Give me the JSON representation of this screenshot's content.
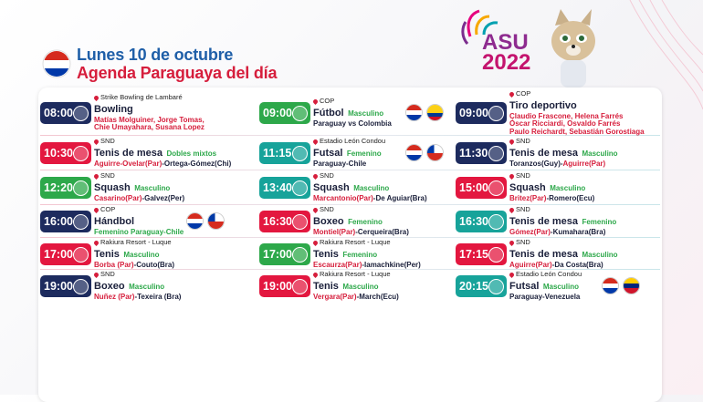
{
  "header": {
    "date": "Lunes 10 de octubre",
    "subtitle": "Agenda Paraguaya del día"
  },
  "logo": {
    "text": "ASU",
    "year": "2022"
  },
  "events": [
    {
      "time": "08:00",
      "color": "#1d2b5e",
      "venue": "Strike Bowling de Lambaré",
      "sport": "Bowling",
      "lines": [
        [
          {
            "text": "Matías Molguiner, Jorge Tomas,",
            "color": "#d61e3c"
          }
        ],
        [
          {
            "text": "Chie Umayahara, Susana Lopez",
            "color": "#d61e3c"
          }
        ]
      ]
    },
    {
      "time": "09:00",
      "color": "#2da84a",
      "venue": "COP",
      "sport": "Fútbol",
      "category": "Masculino",
      "lines": [
        [
          {
            "text": "Paraguay vs Colombia",
            "color": "#1a1f3a"
          }
        ]
      ]
    },
    {
      "time": "09:00",
      "color": "#1d2b5e",
      "venue": "COP",
      "sport": "Tiro deportivo",
      "lines": [
        [
          {
            "text": "Claudio Frascone, Helena Farrés",
            "color": "#d61e3c"
          }
        ],
        [
          {
            "text": "Óscar Ricciardi, Osvaldo Farrés",
            "color": "#d61e3c"
          }
        ],
        [
          {
            "text": "Paulo Reichardt, Sebastián Gorostiaga",
            "color": "#d61e3c"
          }
        ]
      ]
    },
    {
      "time": "10:30",
      "color": "#e3173f",
      "venue": "SND",
      "sport": "Tenis de mesa",
      "category": "Dobles mixtos",
      "lines": [
        [
          {
            "text": "Aguirre-Ovelar(Par)",
            "color": "#d61e3c"
          },
          {
            "text": "-Ortega-Gómez(Chi)",
            "color": "#1a1f3a"
          }
        ]
      ]
    },
    {
      "time": "11:15",
      "color": "#17a39a",
      "venue": "Estadio León Condou",
      "sport": "Futsal",
      "category": "Femenino",
      "lines": [
        [
          {
            "text": "Paraguay-Chile",
            "color": "#1a1f3a"
          }
        ]
      ]
    },
    {
      "time": "11:30",
      "color": "#1d2b5e",
      "venue": "SND",
      "sport": "Tenis de mesa",
      "category": "Masculino",
      "lines": [
        [
          {
            "text": "Toranzos(Guy)-",
            "color": "#1a1f3a"
          },
          {
            "text": "Aguirre(Par)",
            "color": "#d61e3c"
          }
        ]
      ]
    },
    {
      "time": "12:20",
      "color": "#2da84a",
      "venue": "SND",
      "sport": "Squash",
      "category": "Masculino",
      "lines": [
        [
          {
            "text": "Casarino(Par)",
            "color": "#d61e3c"
          },
          {
            "text": "-Galvez(Per)",
            "color": "#1a1f3a"
          }
        ]
      ]
    },
    {
      "time": "13:40",
      "color": "#17a39a",
      "venue": "SND",
      "sport": "Squash",
      "category": "Masculino",
      "lines": [
        [
          {
            "text": "Marcantonio(Par)",
            "color": "#d61e3c"
          },
          {
            "text": "-De Aguiar(Bra)",
            "color": "#1a1f3a"
          }
        ]
      ]
    },
    {
      "time": "15:00",
      "color": "#e3173f",
      "venue": "SND",
      "sport": "Squash",
      "category": "Masculino",
      "lines": [
        [
          {
            "text": "Britez(Par)",
            "color": "#d61e3c"
          },
          {
            "text": "-Romero(Ecu)",
            "color": "#1a1f3a"
          }
        ]
      ]
    },
    {
      "time": "16:00",
      "color": "#1d2b5e",
      "venue": "COP",
      "sport": "Hándbol",
      "lines": [
        [
          {
            "text": "Femenino Paraguay-Chile",
            "color": "#2da84a"
          }
        ]
      ]
    },
    {
      "time": "16:30",
      "color": "#e3173f",
      "venue": "SND",
      "sport": "Boxeo",
      "category": "Femenino",
      "lines": [
        [
          {
            "text": "Montiel(Par)",
            "color": "#d61e3c"
          },
          {
            "text": "-Cerqueira(Bra)",
            "color": "#1a1f3a"
          }
        ]
      ]
    },
    {
      "time": "16:30",
      "color": "#17a39a",
      "venue": "SND",
      "sport": "Tenis de mesa",
      "category": "Femenino",
      "lines": [
        [
          {
            "text": "Gómez(Par)",
            "color": "#d61e3c"
          },
          {
            "text": "-Kumahara(Bra)",
            "color": "#1a1f3a"
          }
        ]
      ]
    },
    {
      "time": "17:00",
      "color": "#e3173f",
      "venue": "Rakiura Resort - Luque",
      "sport": "Tenis",
      "category": "Masculino",
      "lines": [
        [
          {
            "text": "Borba (Par)",
            "color": "#d61e3c"
          },
          {
            "text": "-Couto(Bra)",
            "color": "#1a1f3a"
          }
        ]
      ]
    },
    {
      "time": "17:00",
      "color": "#2da84a",
      "venue": "Rakiura Resort - Luque",
      "sport": "Tenis",
      "category": "Femenino",
      "lines": [
        [
          {
            "text": "Escaurza(Par)",
            "color": "#d61e3c"
          },
          {
            "text": "-Iamachkine(Per)",
            "color": "#1a1f3a"
          }
        ]
      ]
    },
    {
      "time": "17:15",
      "color": "#e3173f",
      "venue": "SND",
      "sport": "Tenis de mesa",
      "category": "Masculino",
      "lines": [
        [
          {
            "text": "Aguirre(Par)",
            "color": "#d61e3c"
          },
          {
            "text": "-Da Costa(Bra)",
            "color": "#1a1f3a"
          }
        ]
      ]
    },
    {
      "time": "19:00",
      "color": "#1d2b5e",
      "venue": "SND",
      "sport": "Boxeo",
      "category": "Masculino",
      "lines": [
        [
          {
            "text": "Nuñez (Par)",
            "color": "#d61e3c"
          },
          {
            "text": "-Texeira (Bra)",
            "color": "#1a1f3a"
          }
        ]
      ]
    },
    {
      "time": "19:00",
      "color": "#e3173f",
      "venue": "Rakiura Resort - Luque",
      "sport": "Tenis",
      "category": "Masculino",
      "lines": [
        [
          {
            "text": "Vergara(Par)",
            "color": "#d61e3c"
          },
          {
            "text": "-March(Ecu)",
            "color": "#1a1f3a"
          }
        ]
      ]
    },
    {
      "time": "20:15",
      "color": "#17a39a",
      "venue": "Estadio León Condou",
      "sport": "Futsal",
      "category": "Masculino",
      "lines": [
        [
          {
            "text": "Paraguay-Venezuela",
            "color": "#1a1f3a"
          }
        ]
      ]
    }
  ]
}
